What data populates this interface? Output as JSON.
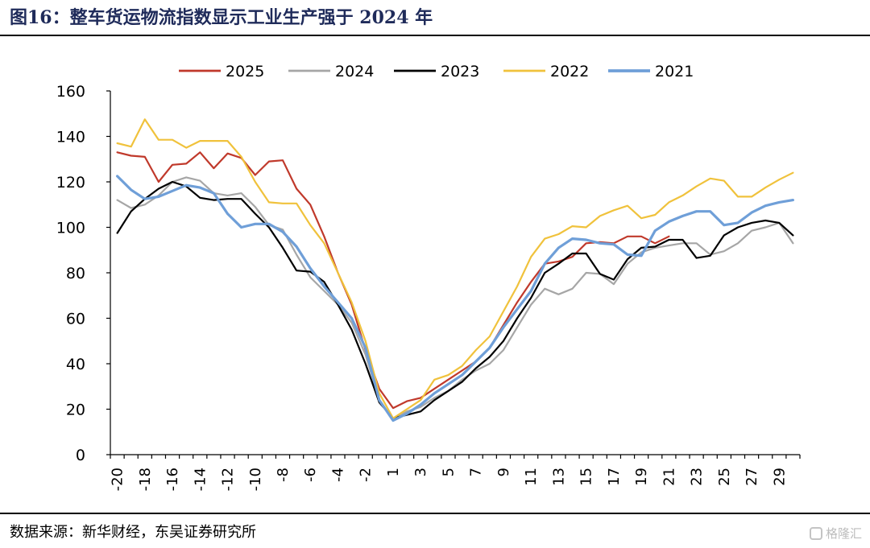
{
  "figure": {
    "title": "图16：整车货运物流指数显示工业生产强于 2024 年",
    "source": "数据来源：新华财经，东吴证券研究所",
    "watermark": "格隆汇"
  },
  "chart_data": {
    "type": "line",
    "title": "",
    "xlabel": "",
    "ylabel": "",
    "ylim": [
      0,
      160
    ],
    "yticks": [
      0,
      20,
      40,
      60,
      80,
      100,
      120,
      140,
      160
    ],
    "xticks": [
      -20,
      -18,
      -16,
      -14,
      -12,
      -10,
      -8,
      -6,
      -4,
      -2,
      1,
      3,
      5,
      7,
      9,
      11,
      13,
      15,
      17,
      19,
      21,
      23,
      25,
      27,
      29
    ],
    "x": [
      -20,
      -19,
      -18,
      -17,
      -16,
      -15,
      -14,
      -13,
      -12,
      -11,
      -10,
      -9,
      -8,
      -7,
      -6,
      -5,
      -4,
      -3,
      -2,
      -1,
      1,
      2,
      3,
      4,
      5,
      6,
      7,
      8,
      9,
      10,
      11,
      12,
      13,
      14,
      15,
      16,
      17,
      18,
      19,
      20,
      21,
      22,
      23,
      24,
      25,
      26,
      27,
      28,
      29,
      30
    ],
    "legend_position": "top-center",
    "grid": false,
    "series": [
      {
        "name": "2025",
        "color": "#c0392b",
        "width": 2.2,
        "values": [
          133,
          131.5,
          131,
          120,
          127.5,
          128,
          133,
          126,
          132.5,
          130.5,
          123,
          129,
          129.5,
          117,
          110,
          96,
          80,
          66,
          46,
          29,
          20.5,
          23.5,
          25,
          29,
          33,
          37,
          41,
          47,
          57,
          67,
          76,
          84,
          85,
          87,
          93,
          93.5,
          93,
          96,
          96,
          93,
          96,
          null,
          null,
          null,
          null,
          null,
          null,
          null,
          null,
          null
        ]
      },
      {
        "name": "2024",
        "color": "#a6a6a6",
        "width": 2.2,
        "values": [
          112,
          108.5,
          110,
          114,
          120,
          122,
          120.5,
          115,
          114,
          115,
          109,
          101,
          99,
          88,
          78,
          72,
          66,
          58,
          44,
          24,
          15.5,
          19,
          21,
          25,
          28,
          33,
          37,
          40,
          46,
          56,
          66,
          73,
          70.5,
          73,
          80,
          79.5,
          75,
          84,
          89,
          91,
          92,
          93,
          93,
          88,
          89.5,
          93,
          98.5,
          100,
          102,
          93
        ]
      },
      {
        "name": "2023",
        "color": "#000000",
        "width": 2.2,
        "values": [
          97.5,
          107,
          112.5,
          117,
          120,
          118,
          113,
          112,
          112.5,
          112.5,
          106,
          100,
          91,
          81,
          80.5,
          76,
          66,
          55,
          40,
          23,
          16,
          17.5,
          19,
          24,
          28,
          32,
          38,
          43,
          50,
          60,
          69,
          80,
          84,
          88.5,
          88.5,
          79.5,
          77,
          86,
          91,
          91.5,
          94.5,
          94.5,
          86.5,
          87.5,
          96.5,
          100,
          102,
          103,
          102,
          96.5
        ]
      },
      {
        "name": "2022",
        "color": "#f0c23c",
        "width": 2.2,
        "values": [
          137,
          135.5,
          147.5,
          138.5,
          138.5,
          135,
          138,
          138,
          138,
          131,
          120,
          111,
          110.5,
          110.5,
          101,
          93,
          80,
          67,
          50,
          27,
          16,
          20,
          24,
          33,
          35,
          39,
          46,
          52,
          63,
          74,
          87,
          95,
          97,
          100.5,
          100,
          105,
          107.5,
          109.5,
          104,
          105.5,
          111,
          114,
          118,
          121.5,
          120.5,
          113.5,
          113.5,
          117.5,
          121,
          124
        ]
      },
      {
        "name": "2021",
        "color": "#6f9fd8",
        "width": 3.2,
        "values": [
          122.5,
          116.5,
          112.5,
          113.5,
          116,
          118.5,
          117.5,
          115,
          106,
          100,
          101.5,
          101.5,
          98,
          91.5,
          82,
          74,
          67,
          60,
          47,
          24,
          15,
          18,
          22,
          27,
          31,
          35,
          41,
          47,
          56,
          64,
          72,
          84,
          91,
          95,
          94.5,
          93,
          92.5,
          88,
          87.5,
          98.5,
          102.5,
          105,
          107,
          107,
          101,
          102,
          106.5,
          109.5,
          111,
          112
        ]
      }
    ]
  }
}
